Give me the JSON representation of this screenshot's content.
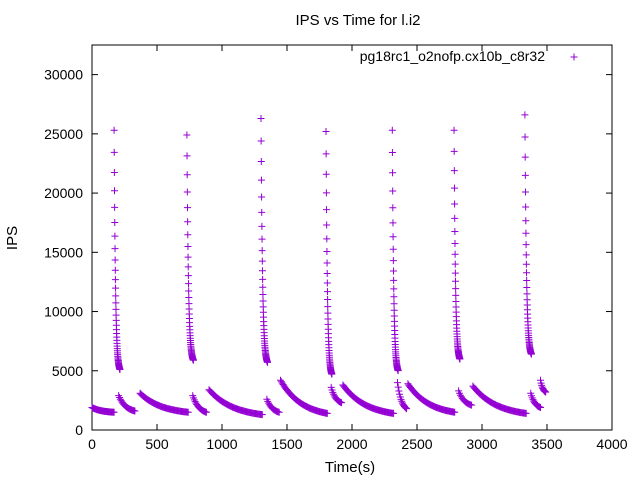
{
  "chart_data": {
    "type": "scatter",
    "title": "IPS vs Time for l.i2",
    "xlabel": "Time(s)",
    "ylabel": "IPS",
    "xlim": [
      0,
      4000
    ],
    "ylim": [
      0,
      32500
    ],
    "xticks": [
      0,
      500,
      1000,
      1500,
      2000,
      2500,
      3000,
      3500,
      4000
    ],
    "yticks": [
      0,
      5000,
      10000,
      15000,
      20000,
      25000,
      30000
    ],
    "grid": false,
    "legend_position": "top-right",
    "marker": "+",
    "color": "#9400d3",
    "series": [
      {
        "name": "pg18rc1_o2nofp.cx10b_c8r32",
        "segments": [
          {
            "kind": "decay",
            "x": [
              0,
              170
            ],
            "y": [
              1900,
              1500
            ],
            "count": 30
          },
          {
            "kind": "spike",
            "x": [
              170,
              215
            ],
            "y": [
              25300,
              4800
            ],
            "count": 45
          },
          {
            "kind": "decay",
            "x": [
              205,
              330
            ],
            "y": [
              2900,
              1600
            ],
            "count": 20
          },
          {
            "kind": "decay",
            "x": [
              370,
              740
            ],
            "y": [
              3100,
              1500
            ],
            "count": 55
          },
          {
            "kind": "spike",
            "x": [
              730,
              780
            ],
            "y": [
              24900,
              5600
            ],
            "count": 45
          },
          {
            "kind": "decay",
            "x": [
              775,
              880
            ],
            "y": [
              2900,
              1500
            ],
            "count": 18
          },
          {
            "kind": "decay",
            "x": [
              900,
              1310
            ],
            "y": [
              3400,
              1300
            ],
            "count": 60
          },
          {
            "kind": "spike",
            "x": [
              1300,
              1350
            ],
            "y": [
              26300,
              5400
            ],
            "count": 45
          },
          {
            "kind": "decay",
            "x": [
              1345,
              1440
            ],
            "y": [
              2600,
              1500
            ],
            "count": 15
          },
          {
            "kind": "decay",
            "x": [
              1450,
              1810
            ],
            "y": [
              4200,
              1400
            ],
            "count": 55
          },
          {
            "kind": "spike",
            "x": [
              1800,
              1845
            ],
            "y": [
              25200,
              4400
            ],
            "count": 45
          },
          {
            "kind": "decay",
            "x": [
              1840,
              1920
            ],
            "y": [
              3600,
              2300
            ],
            "count": 14
          },
          {
            "kind": "decay",
            "x": [
              1930,
              2320
            ],
            "y": [
              3800,
              1400
            ],
            "count": 60
          },
          {
            "kind": "spike",
            "x": [
              2310,
              2355
            ],
            "y": [
              25300,
              4700
            ],
            "count": 45
          },
          {
            "kind": "decay",
            "x": [
              2350,
              2420
            ],
            "y": [
              4000,
              1800
            ],
            "count": 14
          },
          {
            "kind": "decay",
            "x": [
              2430,
              2790
            ],
            "y": [
              3900,
              1500
            ],
            "count": 55
          },
          {
            "kind": "spike",
            "x": [
              2785,
              2830
            ],
            "y": [
              25300,
              5700
            ],
            "count": 45
          },
          {
            "kind": "decay",
            "x": [
              2820,
              2920
            ],
            "y": [
              3300,
              2100
            ],
            "count": 15
          },
          {
            "kind": "decay",
            "x": [
              2930,
              3340
            ],
            "y": [
              3700,
              1400
            ],
            "count": 60
          },
          {
            "kind": "spike",
            "x": [
              3330,
              3380
            ],
            "y": [
              26600,
              6100
            ],
            "count": 45
          },
          {
            "kind": "decay",
            "x": [
              3375,
              3450
            ],
            "y": [
              3100,
              1900
            ],
            "count": 14
          },
          {
            "kind": "decay",
            "x": [
              3450,
              3490
            ],
            "y": [
              4200,
              3200
            ],
            "count": 10
          }
        ]
      }
    ]
  }
}
